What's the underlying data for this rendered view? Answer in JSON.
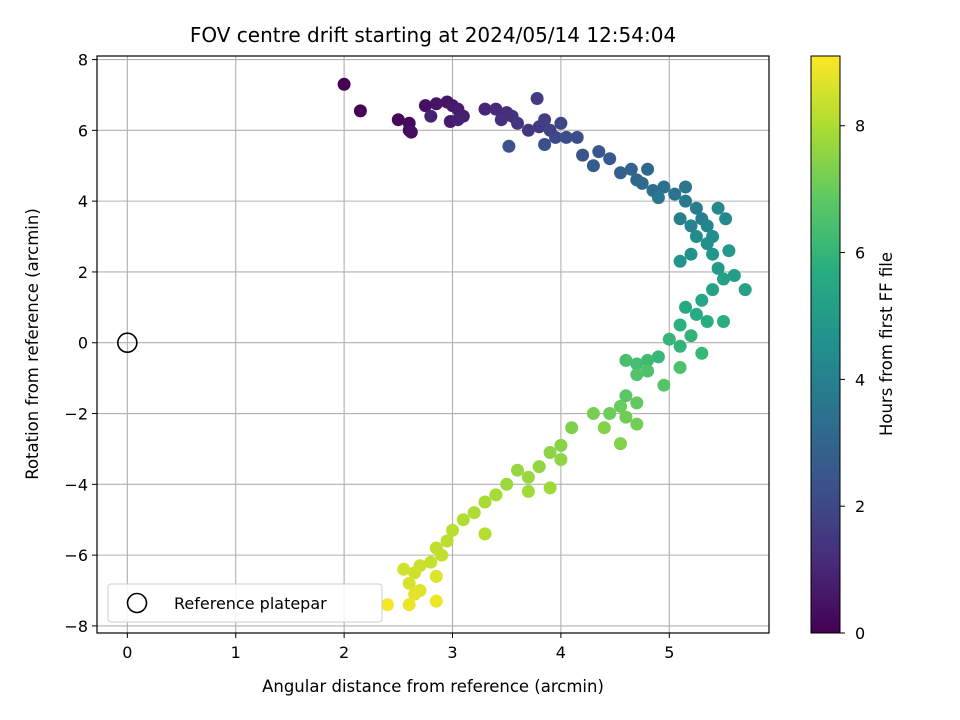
{
  "chart_data": {
    "type": "scatter",
    "title": "FOV centre drift starting at 2024/05/14 12:54:04",
    "xlabel": "Angular distance from reference (arcmin)",
    "ylabel": "Rotation from reference (arcmin)",
    "xlim": [
      -0.28,
      5.92
    ],
    "ylim": [
      -8.2,
      8.1
    ],
    "xticks": [
      0,
      1,
      2,
      3,
      4,
      5
    ],
    "yticks": [
      -8,
      -6,
      -4,
      -2,
      0,
      2,
      4,
      6,
      8
    ],
    "grid": true,
    "legend": {
      "placement": "lower-left",
      "entries": [
        "Reference platepar"
      ]
    },
    "reference_point": {
      "x": 0,
      "y": 0,
      "label": "Reference platepar"
    },
    "colorbar": {
      "label": "Hours from first FF file",
      "range": [
        0,
        9.1
      ],
      "ticks": [
        0,
        2,
        4,
        6,
        8
      ],
      "colormap": "viridis"
    },
    "series": [
      {
        "points": [
          [
            2.0,
            7.3,
            0.0
          ],
          [
            2.15,
            6.55,
            0.1
          ],
          [
            2.5,
            6.3,
            0.2
          ],
          [
            2.6,
            6.2,
            0.25
          ],
          [
            2.6,
            6.0,
            0.3
          ],
          [
            2.62,
            5.95,
            0.35
          ],
          [
            2.75,
            6.7,
            0.4
          ],
          [
            2.85,
            6.75,
            0.5
          ],
          [
            2.95,
            6.8,
            0.55
          ],
          [
            3.0,
            6.7,
            0.6
          ],
          [
            3.05,
            6.6,
            0.7
          ],
          [
            2.98,
            6.25,
            0.75
          ],
          [
            3.1,
            6.4,
            0.8
          ],
          [
            3.05,
            6.3,
            0.85
          ],
          [
            2.8,
            6.4,
            0.9
          ],
          [
            3.3,
            6.6,
            1.0
          ],
          [
            3.4,
            6.6,
            1.1
          ],
          [
            3.5,
            6.5,
            1.2
          ],
          [
            3.45,
            6.3,
            1.25
          ],
          [
            3.55,
            6.4,
            1.3
          ],
          [
            3.6,
            6.2,
            1.4
          ],
          [
            3.7,
            6.0,
            1.5
          ],
          [
            3.8,
            6.1,
            1.6
          ],
          [
            3.78,
            6.9,
            1.65
          ],
          [
            3.85,
            6.3,
            1.7
          ],
          [
            3.9,
            6.0,
            1.8
          ],
          [
            4.0,
            6.2,
            1.9
          ],
          [
            3.95,
            5.8,
            2.0
          ],
          [
            4.05,
            5.8,
            2.1
          ],
          [
            4.15,
            5.8,
            2.2
          ],
          [
            3.85,
            5.6,
            2.25
          ],
          [
            3.52,
            5.55,
            2.3
          ],
          [
            4.2,
            5.3,
            2.4
          ],
          [
            4.35,
            5.4,
            2.5
          ],
          [
            4.45,
            5.2,
            2.6
          ],
          [
            4.3,
            5.0,
            2.7
          ],
          [
            4.55,
            4.8,
            2.8
          ],
          [
            4.65,
            4.9,
            2.9
          ],
          [
            4.7,
            4.6,
            3.0
          ],
          [
            4.8,
            4.9,
            3.1
          ],
          [
            4.75,
            4.5,
            3.2
          ],
          [
            4.85,
            4.3,
            3.3
          ],
          [
            4.95,
            4.4,
            3.4
          ],
          [
            5.05,
            4.2,
            3.5
          ],
          [
            5.15,
            4.4,
            3.55
          ],
          [
            4.9,
            4.1,
            3.6
          ],
          [
            5.15,
            4.0,
            3.7
          ],
          [
            5.25,
            3.8,
            3.8
          ],
          [
            5.3,
            3.5,
            3.9
          ],
          [
            5.1,
            3.5,
            4.0
          ],
          [
            5.2,
            3.3,
            4.1
          ],
          [
            5.35,
            3.3,
            4.2
          ],
          [
            5.45,
            3.8,
            4.25
          ],
          [
            5.52,
            3.5,
            4.3
          ],
          [
            5.25,
            3.0,
            4.4
          ],
          [
            5.4,
            3.0,
            4.5
          ],
          [
            5.35,
            2.8,
            4.55
          ],
          [
            5.2,
            2.5,
            4.6
          ],
          [
            5.1,
            2.3,
            4.7
          ],
          [
            5.4,
            2.5,
            4.8
          ],
          [
            5.55,
            2.6,
            4.9
          ],
          [
            5.45,
            2.1,
            5.0
          ],
          [
            5.6,
            1.9,
            5.1
          ],
          [
            5.7,
            1.5,
            5.2
          ],
          [
            5.5,
            1.8,
            5.25
          ],
          [
            5.4,
            1.5,
            5.3
          ],
          [
            5.3,
            1.2,
            5.4
          ],
          [
            5.15,
            1.0,
            5.5
          ],
          [
            5.25,
            0.8,
            5.6
          ],
          [
            5.35,
            0.6,
            5.7
          ],
          [
            5.5,
            0.6,
            5.75
          ],
          [
            5.1,
            0.5,
            5.8
          ],
          [
            5.2,
            0.2,
            5.9
          ],
          [
            5.1,
            -0.1,
            5.95
          ],
          [
            5.0,
            0.1,
            6.0
          ],
          [
            5.3,
            -0.3,
            6.05
          ],
          [
            4.9,
            -0.4,
            6.1
          ],
          [
            4.8,
            -0.5,
            6.2
          ],
          [
            4.7,
            -0.6,
            6.3
          ],
          [
            4.6,
            -0.5,
            6.4
          ],
          [
            5.1,
            -0.7,
            6.5
          ],
          [
            4.8,
            -0.8,
            6.55
          ],
          [
            4.7,
            -0.9,
            6.6
          ],
          [
            4.95,
            -1.2,
            6.7
          ],
          [
            4.6,
            -1.5,
            6.8
          ],
          [
            4.7,
            -1.7,
            6.9
          ],
          [
            4.55,
            -1.8,
            7.0
          ],
          [
            4.45,
            -2.0,
            7.05
          ],
          [
            4.6,
            -2.1,
            7.1
          ],
          [
            4.7,
            -2.3,
            7.15
          ],
          [
            4.3,
            -2.0,
            7.2
          ],
          [
            4.1,
            -2.4,
            7.3
          ],
          [
            4.55,
            -2.85,
            7.35
          ],
          [
            4.4,
            -2.4,
            7.4
          ],
          [
            4.0,
            -2.9,
            7.45
          ],
          [
            3.9,
            -3.1,
            7.5
          ],
          [
            4.0,
            -3.3,
            7.55
          ],
          [
            3.8,
            -3.5,
            7.6
          ],
          [
            3.6,
            -3.6,
            7.65
          ],
          [
            3.7,
            -3.8,
            7.7
          ],
          [
            3.5,
            -4.0,
            7.75
          ],
          [
            3.9,
            -4.1,
            7.8
          ],
          [
            3.7,
            -4.2,
            7.85
          ],
          [
            3.4,
            -4.3,
            7.9
          ],
          [
            3.3,
            -4.5,
            7.95
          ],
          [
            3.2,
            -4.8,
            8.0
          ],
          [
            3.1,
            -5.0,
            8.05
          ],
          [
            3.3,
            -5.4,
            8.1
          ],
          [
            3.0,
            -5.3,
            8.15
          ],
          [
            2.95,
            -5.6,
            8.2
          ],
          [
            2.85,
            -5.8,
            8.25
          ],
          [
            2.9,
            -6.0,
            8.3
          ],
          [
            2.8,
            -6.2,
            8.35
          ],
          [
            2.7,
            -6.3,
            8.4
          ],
          [
            2.65,
            -6.5,
            8.45
          ],
          [
            2.55,
            -6.4,
            8.5
          ],
          [
            2.6,
            -6.8,
            8.6
          ],
          [
            2.85,
            -6.6,
            8.65
          ],
          [
            2.7,
            -7.0,
            8.7
          ],
          [
            2.65,
            -7.1,
            8.75
          ],
          [
            2.6,
            -7.4,
            8.85
          ],
          [
            2.85,
            -7.3,
            8.9
          ],
          [
            2.4,
            -7.4,
            9.0
          ]
        ]
      }
    ]
  }
}
